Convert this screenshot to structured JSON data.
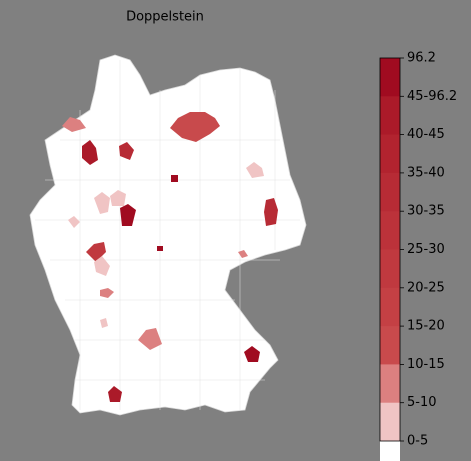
{
  "map": {
    "title": "Doppelstein",
    "legend": {
      "labels": [
        "96.2",
        "45-96.2",
        "40-45",
        "35-40",
        "30-35",
        "25-30",
        "20-25",
        "15-20",
        "10-15",
        "5-10",
        "0-5"
      ],
      "colors": [
        "#a00b20",
        "#ab1a29",
        "#b2232f",
        "#b72b35",
        "#bc323a",
        "#c0393f",
        "#c44044",
        "#c84a4c",
        "#dc8080",
        "#f0c4c4",
        "#ffffff"
      ]
    }
  }
}
